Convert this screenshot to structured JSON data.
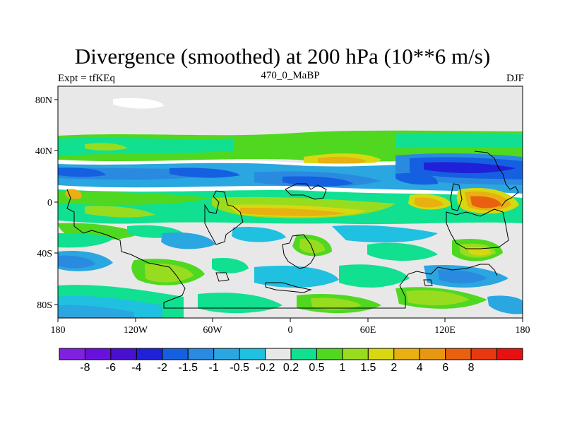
{
  "title": "Divergence (smoothed) at 200 hPa (10**6 m/s)",
  "left_label": "Expt = tfKEq",
  "center_label": "470_0_MaBP",
  "right_label": "DJF",
  "lat_ticks": [
    "80N",
    "40N",
    "0",
    "40S",
    "80S"
  ],
  "lon_ticks": [
    "180",
    "120W",
    "60W",
    "0",
    "60E",
    "120E",
    "180"
  ],
  "colorbar": {
    "colors": [
      "#8020e0",
      "#6a10dc",
      "#4a10d0",
      "#2020d8",
      "#1560e0",
      "#2a8ae0",
      "#2aa6e0",
      "#20c0e0",
      "#e8e8e8",
      "#10e090",
      "#50d820",
      "#98dc20",
      "#d8d810",
      "#e8b010",
      "#e89810",
      "#e86010",
      "#e83810",
      "#e81010"
    ],
    "labels": [
      "-8",
      "-6",
      "-4",
      "-2",
      "-1.5",
      "-1",
      "-0.5",
      "-0.2",
      "0.2",
      "0.5",
      "1",
      "1.5",
      "2",
      "4",
      "6",
      "8"
    ]
  }
}
